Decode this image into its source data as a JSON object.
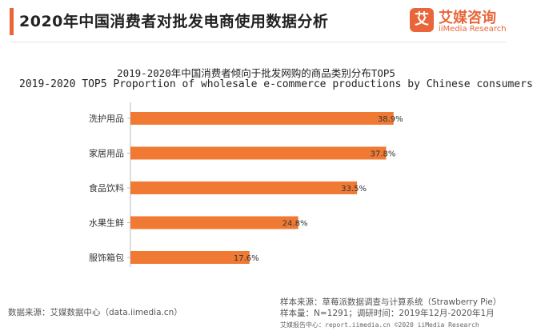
{
  "header": {
    "title": "2020年中国消费者对批发电商使用数据分析",
    "logo_mark": "艾",
    "logo_cn": "艾媒咨询",
    "logo_en": "iiMedia Research"
  },
  "chart_data": {
    "type": "bar",
    "orientation": "horizontal",
    "title": "2019-2020年中国消费者倾向于批发网购的商品类别分布TOP5",
    "subtitle": "2019-2020   TOP5 Proportion of wholesale e-commerce productions by Chinese consumers",
    "categories": [
      "洗护用品",
      "家居用品",
      "食品饮料",
      "水果生鲜",
      "服饰箱包"
    ],
    "values": [
      38.9,
      37.8,
      33.5,
      24.8,
      17.6
    ],
    "value_labels": [
      "38.9%",
      "37.8%",
      "33.5%",
      "24.8%",
      "17.6%"
    ],
    "xlim": [
      0,
      42
    ],
    "bar_color": "#f07a34",
    "grid": false
  },
  "footer": {
    "source": "数据来源：艾媒数据中心（data.iimedia.cn）",
    "sample_source": "样本来源：草莓派数据调查与计算系统（Strawberry Pie）",
    "sample_info": "样本量：N=1291；调研时间：2019年12月-2020年1月",
    "bottom_line": "艾媒报告中心：report.iimedia.cn ©2020  iiMedia Research"
  }
}
